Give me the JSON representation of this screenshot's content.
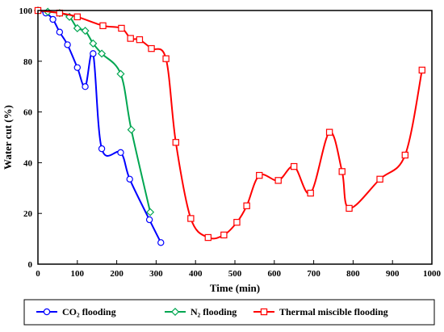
{
  "chart_data": {
    "type": "line",
    "xlabel": "Time (min)",
    "ylabel": "Water cut (%)",
    "xlim": [
      0,
      1000
    ],
    "ylim": [
      0,
      100
    ],
    "x_ticks": [
      0,
      100,
      200,
      300,
      400,
      500,
      600,
      700,
      800,
      900,
      1000
    ],
    "y_ticks": [
      0,
      20,
      40,
      60,
      80,
      100
    ],
    "grid": false,
    "legend_position": "bottom",
    "series": [
      {
        "name": "CO₂ flooding",
        "color": "#0000ff",
        "marker": "circle",
        "x": [
          0,
          20,
          38,
          55,
          75,
          100,
          120,
          140,
          162,
          210,
          233,
          283,
          312
        ],
        "y": [
          100,
          99,
          96.5,
          91.5,
          86.5,
          77.5,
          70,
          83,
          45.5,
          44,
          33.5,
          17.5,
          8.5
        ]
      },
      {
        "name": "N₂ flooding",
        "color": "#00a651",
        "marker": "diamond",
        "x": [
          0,
          25,
          55,
          80,
          100,
          120,
          140,
          162,
          210,
          237,
          285
        ],
        "y": [
          100,
          99.5,
          99,
          97.5,
          93,
          92,
          87,
          83,
          75,
          53,
          20.5
        ]
      },
      {
        "name": "Thermal miscible flooding",
        "color": "#ff0000",
        "marker": "square",
        "x": [
          0,
          55,
          100,
          165,
          212,
          235,
          258,
          288,
          325,
          350,
          388,
          432,
          472,
          505,
          530,
          562,
          610,
          650,
          692,
          740,
          772,
          790,
          868,
          932,
          975
        ],
        "y": [
          100,
          99,
          97.5,
          94,
          93,
          89,
          88.5,
          85,
          81,
          48,
          18,
          10.5,
          11.5,
          16.5,
          23,
          35,
          33,
          38.5,
          28,
          52,
          36.5,
          22,
          33.5,
          43,
          76.5
        ]
      }
    ]
  }
}
